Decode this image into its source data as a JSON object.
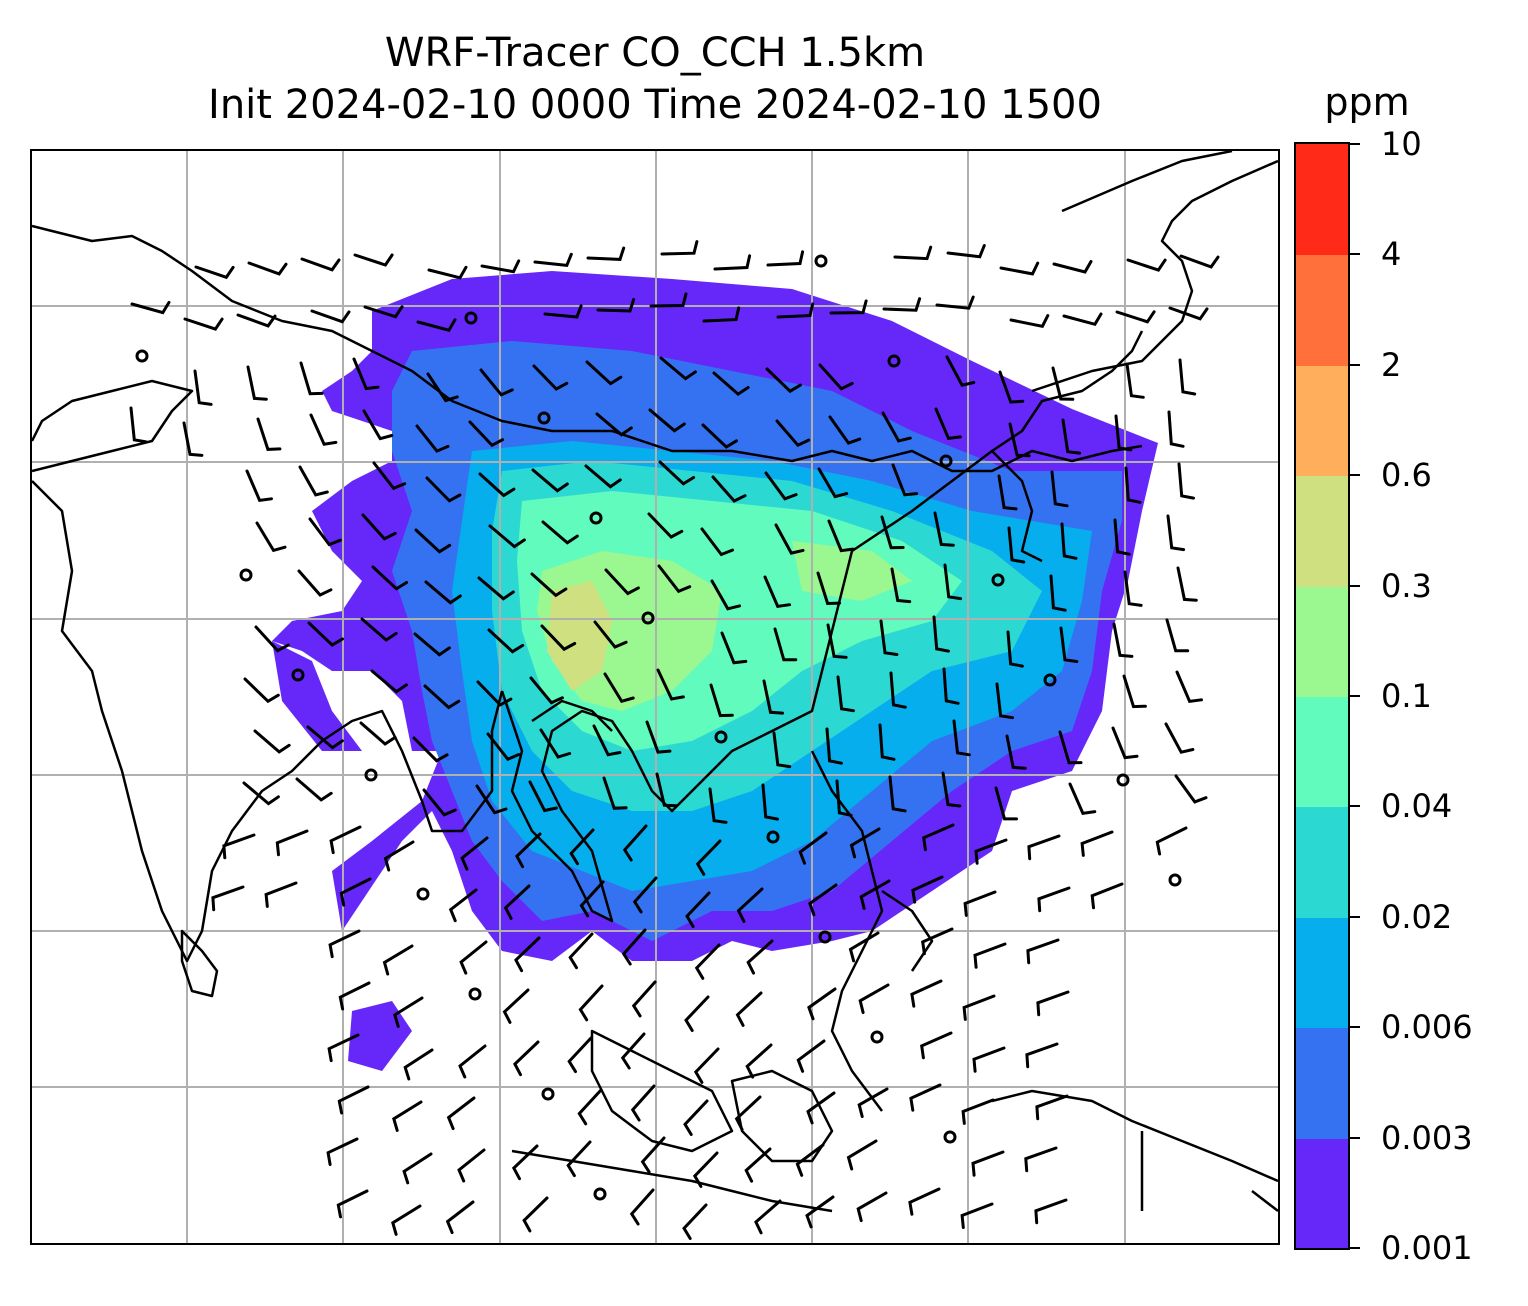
{
  "title_line1": "WRF-Tracer CO_CCH 1.5km",
  "title_line2": "Init 2024-02-10 0000 Time 2024-02-10 1500",
  "colorbar": {
    "unit": "ppm",
    "levels": [
      "0.001",
      "0.003",
      "0.006",
      "0.02",
      "0.04",
      "0.1",
      "0.3",
      "0.6",
      "2",
      "4",
      "10"
    ],
    "colors": [
      "#6528f9",
      "#3572f2",
      "#06aeed",
      "#2cd9d2",
      "#61fbbd",
      "#9bf78f",
      "#cfe081",
      "#ffae5c",
      "#ff703b",
      "#ff2a18"
    ]
  },
  "colors": {
    "land_outline": "#000000",
    "gridlines": "#b0b0b0",
    "barbs": "#000000"
  }
}
